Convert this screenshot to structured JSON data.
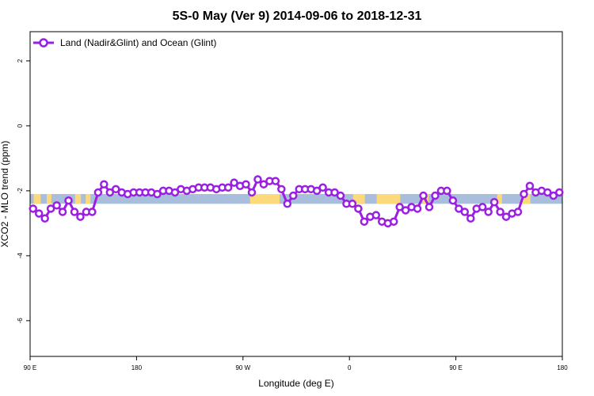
{
  "chart_data": {
    "type": "line",
    "title": "5S-0 May (Ver 9)   2014-09-06 to 2018-12-31",
    "xlabel": "Longitude (deg E)",
    "ylabel": "XCO2 - MLO trend (ppm)",
    "xlim": [
      90,
      540
    ],
    "ylim": [
      -7.1,
      2.9
    ],
    "x_ticks": [
      {
        "value": 90,
        "label": "90 E"
      },
      {
        "value": 180,
        "label": "180"
      },
      {
        "value": 270,
        "label": "90 W"
      },
      {
        "value": 360,
        "label": "0"
      },
      {
        "value": 450,
        "label": "90 E"
      },
      {
        "value": 540,
        "label": "180"
      }
    ],
    "y_ticks": [
      {
        "value": 2,
        "label": "2"
      },
      {
        "value": 0,
        "label": "0"
      },
      {
        "value": -2,
        "label": "-2"
      },
      {
        "value": -4,
        "label": "-4"
      },
      {
        "value": -6,
        "label": "-6"
      }
    ],
    "grid": false,
    "legend_position": "top-left",
    "series": [
      {
        "name": "Land (Nadir&Glint) and Ocean (Glint)",
        "color": "#9a1fe0",
        "x": [
          92.5,
          97.5,
          102.5,
          107.5,
          112.5,
          117.5,
          122.5,
          127.5,
          132.5,
          137.5,
          142.5,
          147.5,
          152.5,
          157.5,
          162.5,
          167.5,
          172.5,
          177.5,
          182.5,
          187.5,
          192.5,
          197.5,
          202.5,
          207.5,
          212.5,
          217.5,
          222.5,
          227.5,
          232.5,
          237.5,
          242.5,
          247.5,
          252.5,
          257.5,
          262.5,
          267.5,
          272.5,
          277.5,
          282.5,
          287.5,
          292.5,
          297.5,
          302.5,
          307.5,
          312.5,
          317.5,
          322.5,
          327.5,
          332.5,
          337.5,
          342.5,
          347.5,
          352.5,
          357.5,
          362.5,
          367.5,
          372.5,
          377.5,
          382.5,
          387.5,
          392.5,
          397.5,
          402.5,
          407.5,
          412.5,
          417.5,
          422.5,
          427.5,
          432.5,
          437.5,
          442.5,
          447.5,
          452.5,
          457.5,
          462.5,
          467.5,
          472.5,
          477.5,
          482.5,
          487.5,
          492.5,
          497.5,
          502.5,
          507.5,
          512.5,
          517.5,
          522.5,
          527.5,
          532.5,
          537.5
        ],
        "y": [
          -2.55,
          -2.7,
          -2.85,
          -2.55,
          -2.45,
          -2.65,
          -2.3,
          -2.65,
          -2.8,
          -2.65,
          -2.65,
          -2.05,
          -1.8,
          -2.05,
          -1.95,
          -2.05,
          -2.1,
          -2.05,
          -2.05,
          -2.05,
          -2.05,
          -2.1,
          -2.0,
          -2.0,
          -2.05,
          -1.95,
          -2.0,
          -1.95,
          -1.9,
          -1.9,
          -1.9,
          -1.95,
          -1.9,
          -1.9,
          -1.75,
          -1.85,
          -1.8,
          -2.05,
          -1.65,
          -1.8,
          -1.7,
          -1.7,
          -1.95,
          -2.4,
          -2.15,
          -1.95,
          -1.95,
          -1.95,
          -2.0,
          -1.9,
          -2.05,
          -2.05,
          -2.15,
          -2.4,
          -2.4,
          -2.55,
          -2.95,
          -2.8,
          -2.75,
          -2.95,
          -3.0,
          -2.95,
          -2.5,
          -2.6,
          -2.5,
          -2.55,
          -2.15,
          -2.5,
          -2.15,
          -2.0,
          -2.0,
          -2.3,
          -2.55,
          -2.65,
          -2.85,
          -2.55,
          -2.5,
          -2.65,
          -2.35,
          -2.65,
          -2.8,
          -2.7,
          -2.65,
          -2.1,
          -1.85,
          -2.05,
          -2.0,
          -2.05,
          -2.15,
          -2.05
        ]
      }
    ],
    "colors": {
      "ocean_band": "#a8bedc",
      "land_band": "#fcd97a"
    }
  }
}
